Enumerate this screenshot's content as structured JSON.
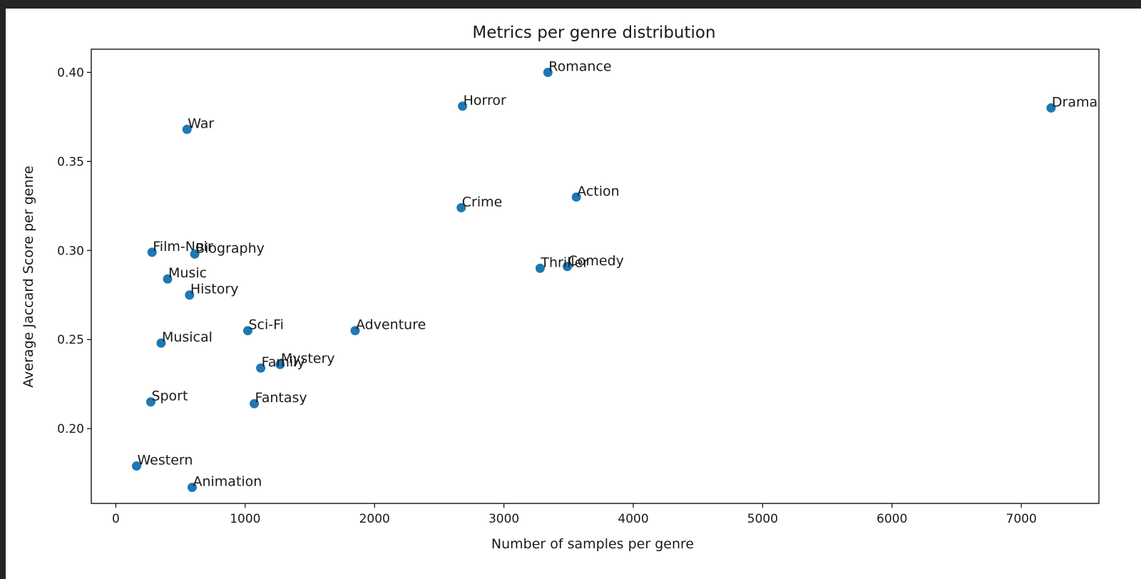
{
  "chart_data": {
    "type": "scatter",
    "title": "Metrics per genre distribution",
    "xlabel": "Number of samples per genre",
    "ylabel": "Average Jaccard Score per genre",
    "xlim": [
      -190,
      7600
    ],
    "ylim": [
      0.158,
      0.413
    ],
    "xticks": [
      0,
      1000,
      2000,
      3000,
      4000,
      5000,
      6000,
      7000
    ],
    "xtick_labels": [
      "0",
      "1000",
      "2000",
      "3000",
      "4000",
      "5000",
      "6000",
      "7000"
    ],
    "yticks": [
      0.2,
      0.25,
      0.3,
      0.35,
      0.4
    ],
    "ytick_labels": [
      "0.20",
      "0.25",
      "0.30",
      "0.35",
      "0.40"
    ],
    "grid": false,
    "marker_color": "#1f77b4",
    "points": [
      {
        "label": "Romance",
        "x": 3340,
        "y": 0.4
      },
      {
        "label": "Horror",
        "x": 2680,
        "y": 0.381
      },
      {
        "label": "Drama",
        "x": 7230,
        "y": 0.38
      },
      {
        "label": "War",
        "x": 550,
        "y": 0.368
      },
      {
        "label": "Action",
        "x": 3560,
        "y": 0.33
      },
      {
        "label": "Crime",
        "x": 2670,
        "y": 0.324
      },
      {
        "label": "Film-Noir",
        "x": 280,
        "y": 0.299
      },
      {
        "label": "Biography",
        "x": 610,
        "y": 0.298
      },
      {
        "label": "Comedy",
        "x": 3490,
        "y": 0.291
      },
      {
        "label": "Thriller",
        "x": 3280,
        "y": 0.29
      },
      {
        "label": "Music",
        "x": 400,
        "y": 0.284
      },
      {
        "label": "History",
        "x": 570,
        "y": 0.275
      },
      {
        "label": "Sci-Fi",
        "x": 1020,
        "y": 0.255
      },
      {
        "label": "Adventure",
        "x": 1850,
        "y": 0.255
      },
      {
        "label": "Musical",
        "x": 350,
        "y": 0.248
      },
      {
        "label": "Mystery",
        "x": 1270,
        "y": 0.236
      },
      {
        "label": "Family",
        "x": 1120,
        "y": 0.234
      },
      {
        "label": "Sport",
        "x": 270,
        "y": 0.215
      },
      {
        "label": "Fantasy",
        "x": 1070,
        "y": 0.214
      },
      {
        "label": "Western",
        "x": 160,
        "y": 0.179
      },
      {
        "label": "Animation",
        "x": 590,
        "y": 0.167
      }
    ]
  }
}
